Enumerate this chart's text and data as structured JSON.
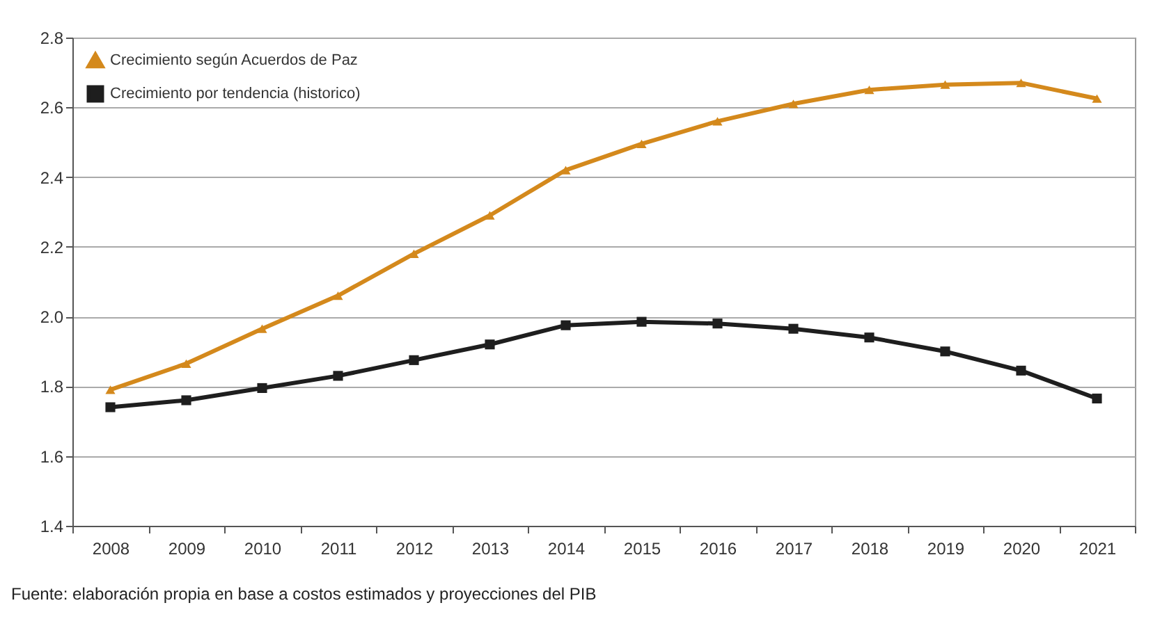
{
  "chart_data": {
    "type": "line",
    "categories": [
      "2008",
      "2009",
      "2010",
      "2011",
      "2012",
      "2013",
      "2014",
      "2015",
      "2016",
      "2017",
      "2018",
      "2019",
      "2020",
      "2021"
    ],
    "series": [
      {
        "name": "Crecimiento según Acuerdos de Paz",
        "color": "#d4891c",
        "marker": "triangle",
        "values": [
          1.79,
          1.865,
          1.965,
          2.06,
          2.18,
          2.29,
          2.42,
          2.495,
          2.56,
          2.61,
          2.65,
          2.665,
          2.67,
          2.625
        ]
      },
      {
        "name": "Crecimiento por tendencia (historico)",
        "color": "#1e1e1e",
        "marker": "square",
        "values": [
          1.74,
          1.76,
          1.795,
          1.83,
          1.875,
          1.92,
          1.975,
          1.985,
          1.98,
          1.965,
          1.94,
          1.9,
          1.845,
          1.765
        ]
      }
    ],
    "ylim": [
      1.4,
      2.8
    ],
    "yticks": [
      1.4,
      1.6,
      1.8,
      {
        "value": 2,
        "label": "2.0"
      },
      2.2,
      2.4,
      2.6,
      2.8
    ],
    "line_style": "solid",
    "grid": "y",
    "legend": "top left",
    "annotations": [
      "Fuente: elaboración propia en base a costos estimados y proyecciones del PIB"
    ]
  }
}
